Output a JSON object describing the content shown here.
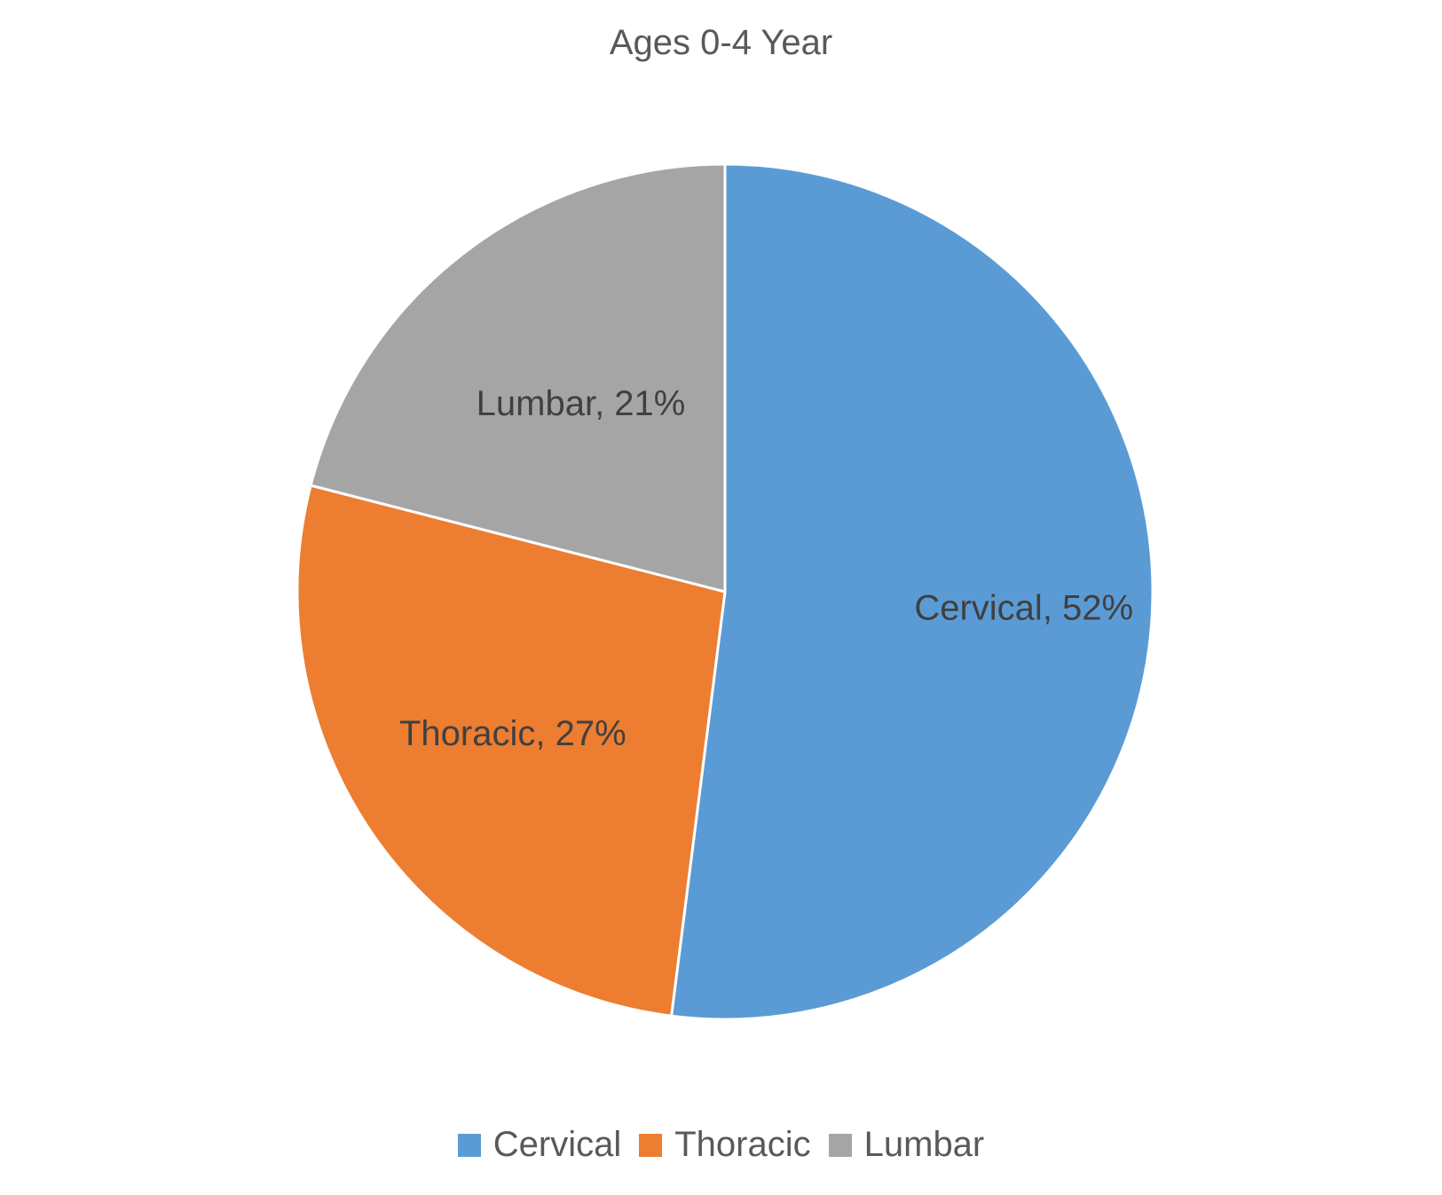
{
  "chart_data": {
    "type": "pie",
    "title": "Ages 0-4 Year",
    "slices": [
      {
        "label": "Cervical",
        "value": 52,
        "data_label": "Cervical, 52%",
        "color": "#5B9BD5"
      },
      {
        "label": "Thoracic",
        "value": 27,
        "data_label": "Thoracic, 27%",
        "color": "#ED7D31"
      },
      {
        "label": "Lumbar",
        "value": 21,
        "data_label": "Lumbar, 21%",
        "color": "#A5A5A5"
      }
    ],
    "start_angle_deg": 0,
    "direction": "clockwise",
    "legend_position": "bottom"
  }
}
